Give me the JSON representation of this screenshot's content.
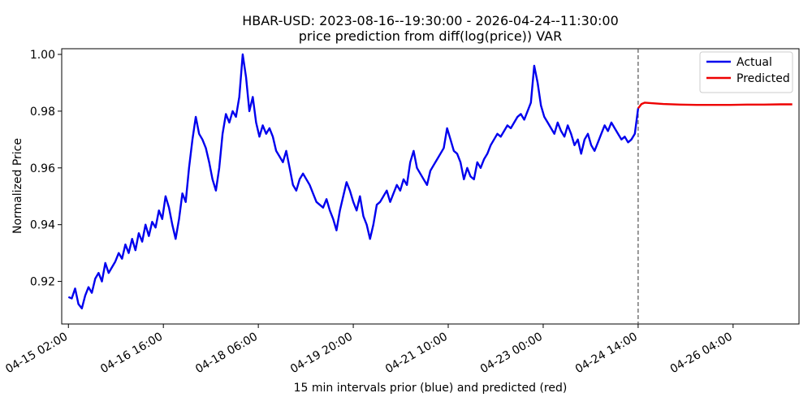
{
  "chart_data": {
    "type": "line",
    "title": "HBAR-USD: 2023-08-16--19:30:00 - 2026-04-24--11:30:00",
    "subtitle": "price prediction from diff(log(price)) VAR",
    "xlabel": "15 min intervals prior (blue) and predicted (red)",
    "ylabel": "Normalized Price",
    "x_ticks": [
      "04-15 02:00",
      "04-16 16:00",
      "04-18 06:00",
      "04-19 20:00",
      "04-21 10:00",
      "04-23 00:00",
      "04-24 14:00",
      "04-26 04:00"
    ],
    "y_ticks": [
      "0.92",
      "0.94",
      "0.96",
      "0.98",
      "1.00"
    ],
    "ylim": [
      0.905,
      1.002
    ],
    "xlim": [
      -8,
      872
    ],
    "legend": {
      "position": "top-right",
      "entries": [
        "Actual",
        "Predicted"
      ]
    },
    "divider_at": 680,
    "series": [
      {
        "name": "Actual",
        "color": "#0000ee",
        "points": [
          [
            0,
            0.9145
          ],
          [
            4,
            0.914
          ],
          [
            8,
            0.9175
          ],
          [
            12,
            0.912
          ],
          [
            16,
            0.9105
          ],
          [
            20,
            0.915
          ],
          [
            24,
            0.918
          ],
          [
            28,
            0.916
          ],
          [
            32,
            0.921
          ],
          [
            36,
            0.923
          ],
          [
            40,
            0.92
          ],
          [
            44,
            0.9265
          ],
          [
            48,
            0.923
          ],
          [
            52,
            0.925
          ],
          [
            56,
            0.927
          ],
          [
            60,
            0.93
          ],
          [
            64,
            0.928
          ],
          [
            68,
            0.933
          ],
          [
            72,
            0.93
          ],
          [
            76,
            0.935
          ],
          [
            80,
            0.931
          ],
          [
            84,
            0.937
          ],
          [
            88,
            0.934
          ],
          [
            92,
            0.94
          ],
          [
            96,
            0.936
          ],
          [
            100,
            0.941
          ],
          [
            104,
            0.939
          ],
          [
            108,
            0.945
          ],
          [
            112,
            0.942
          ],
          [
            116,
            0.95
          ],
          [
            120,
            0.946
          ],
          [
            124,
            0.94
          ],
          [
            128,
            0.935
          ],
          [
            132,
            0.942
          ],
          [
            136,
            0.951
          ],
          [
            140,
            0.948
          ],
          [
            144,
            0.96
          ],
          [
            148,
            0.97
          ],
          [
            152,
            0.978
          ],
          [
            156,
            0.972
          ],
          [
            160,
            0.97
          ],
          [
            164,
            0.967
          ],
          [
            168,
            0.962
          ],
          [
            172,
            0.956
          ],
          [
            176,
            0.952
          ],
          [
            180,
            0.96
          ],
          [
            184,
            0.972
          ],
          [
            188,
            0.979
          ],
          [
            192,
            0.976
          ],
          [
            196,
            0.98
          ],
          [
            200,
            0.978
          ],
          [
            204,
            0.985
          ],
          [
            208,
            1.0
          ],
          [
            212,
            0.992
          ],
          [
            216,
            0.98
          ],
          [
            220,
            0.985
          ],
          [
            224,
            0.976
          ],
          [
            228,
            0.971
          ],
          [
            232,
            0.975
          ],
          [
            236,
            0.972
          ],
          [
            240,
            0.974
          ],
          [
            244,
            0.971
          ],
          [
            248,
            0.966
          ],
          [
            252,
            0.964
          ],
          [
            256,
            0.962
          ],
          [
            260,
            0.966
          ],
          [
            264,
            0.96
          ],
          [
            268,
            0.954
          ],
          [
            272,
            0.952
          ],
          [
            276,
            0.956
          ],
          [
            280,
            0.958
          ],
          [
            284,
            0.956
          ],
          [
            288,
            0.954
          ],
          [
            292,
            0.951
          ],
          [
            296,
            0.948
          ],
          [
            300,
            0.947
          ],
          [
            304,
            0.946
          ],
          [
            308,
            0.949
          ],
          [
            312,
            0.945
          ],
          [
            316,
            0.942
          ],
          [
            320,
            0.938
          ],
          [
            324,
            0.945
          ],
          [
            328,
            0.95
          ],
          [
            332,
            0.955
          ],
          [
            336,
            0.952
          ],
          [
            340,
            0.948
          ],
          [
            344,
            0.945
          ],
          [
            348,
            0.95
          ],
          [
            352,
            0.943
          ],
          [
            356,
            0.94
          ],
          [
            360,
            0.935
          ],
          [
            364,
            0.94
          ],
          [
            368,
            0.947
          ],
          [
            372,
            0.948
          ],
          [
            376,
            0.95
          ],
          [
            380,
            0.952
          ],
          [
            384,
            0.948
          ],
          [
            388,
            0.951
          ],
          [
            392,
            0.954
          ],
          [
            396,
            0.952
          ],
          [
            400,
            0.956
          ],
          [
            404,
            0.954
          ],
          [
            408,
            0.962
          ],
          [
            412,
            0.966
          ],
          [
            416,
            0.96
          ],
          [
            420,
            0.958
          ],
          [
            424,
            0.956
          ],
          [
            428,
            0.954
          ],
          [
            432,
            0.959
          ],
          [
            436,
            0.961
          ],
          [
            440,
            0.963
          ],
          [
            444,
            0.965
          ],
          [
            448,
            0.967
          ],
          [
            452,
            0.974
          ],
          [
            456,
            0.97
          ],
          [
            460,
            0.966
          ],
          [
            464,
            0.965
          ],
          [
            468,
            0.962
          ],
          [
            472,
            0.956
          ],
          [
            476,
            0.96
          ],
          [
            480,
            0.957
          ],
          [
            484,
            0.956
          ],
          [
            488,
            0.962
          ],
          [
            492,
            0.96
          ],
          [
            496,
            0.963
          ],
          [
            500,
            0.965
          ],
          [
            504,
            0.968
          ],
          [
            508,
            0.97
          ],
          [
            512,
            0.972
          ],
          [
            516,
            0.971
          ],
          [
            520,
            0.973
          ],
          [
            524,
            0.975
          ],
          [
            528,
            0.974
          ],
          [
            532,
            0.976
          ],
          [
            536,
            0.978
          ],
          [
            540,
            0.979
          ],
          [
            544,
            0.977
          ],
          [
            548,
            0.98
          ],
          [
            552,
            0.983
          ],
          [
            556,
            0.996
          ],
          [
            560,
            0.99
          ],
          [
            564,
            0.982
          ],
          [
            568,
            0.978
          ],
          [
            572,
            0.976
          ],
          [
            576,
            0.974
          ],
          [
            580,
            0.972
          ],
          [
            584,
            0.976
          ],
          [
            588,
            0.973
          ],
          [
            592,
            0.971
          ],
          [
            596,
            0.975
          ],
          [
            600,
            0.972
          ],
          [
            604,
            0.968
          ],
          [
            608,
            0.97
          ],
          [
            612,
            0.965
          ],
          [
            616,
            0.97
          ],
          [
            620,
            0.972
          ],
          [
            624,
            0.968
          ],
          [
            628,
            0.966
          ],
          [
            632,
            0.969
          ],
          [
            636,
            0.972
          ],
          [
            640,
            0.975
          ],
          [
            644,
            0.973
          ],
          [
            648,
            0.976
          ],
          [
            652,
            0.974
          ],
          [
            656,
            0.972
          ],
          [
            660,
            0.97
          ],
          [
            664,
            0.971
          ],
          [
            668,
            0.969
          ],
          [
            672,
            0.97
          ],
          [
            676,
            0.972
          ],
          [
            680,
            0.981
          ]
        ]
      },
      {
        "name": "Predicted",
        "color": "#ee0000",
        "points": [
          [
            680,
            0.981
          ],
          [
            684,
            0.9825
          ],
          [
            688,
            0.983
          ],
          [
            696,
            0.9828
          ],
          [
            710,
            0.9825
          ],
          [
            730,
            0.9823
          ],
          [
            750,
            0.9822
          ],
          [
            770,
            0.9822
          ],
          [
            790,
            0.9822
          ],
          [
            810,
            0.9823
          ],
          [
            830,
            0.9823
          ],
          [
            850,
            0.9824
          ],
          [
            864,
            0.9824
          ]
        ]
      }
    ]
  }
}
